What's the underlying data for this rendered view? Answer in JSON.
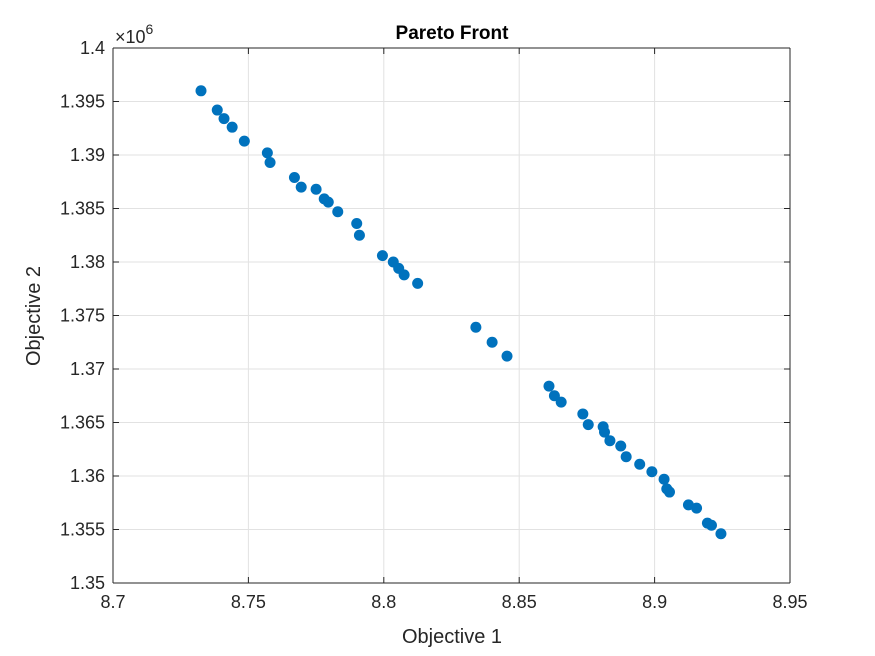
{
  "chart_data": {
    "type": "scatter",
    "title": "Pareto Front",
    "xlabel": "Objective 1",
    "ylabel": "Objective 2",
    "xlim": [
      8.7,
      8.95
    ],
    "ylim": [
      1.35,
      1.4
    ],
    "y_multiplier": "×10",
    "y_exponent": "6",
    "x_ticks": [
      "8.7",
      "8.75",
      "8.8",
      "8.85",
      "8.9",
      "8.95"
    ],
    "y_ticks": [
      "1.35",
      "1.355",
      "1.36",
      "1.365",
      "1.37",
      "1.375",
      "1.38",
      "1.385",
      "1.39",
      "1.395",
      "1.4"
    ],
    "grid": true,
    "marker_color": "#0072BD",
    "series": [
      {
        "x": [
          8.7325,
          8.7385,
          8.741,
          8.744,
          8.7485,
          8.757,
          8.758,
          8.767,
          8.7695,
          8.775,
          8.778,
          8.7795,
          8.783,
          8.79,
          8.791,
          8.7995,
          8.8035,
          8.8055,
          8.8075,
          8.8125,
          8.834,
          8.84,
          8.8455,
          8.861,
          8.863,
          8.8655,
          8.8735,
          8.8755,
          8.881,
          8.8815,
          8.8835,
          8.8875,
          8.8895,
          8.8945,
          8.899,
          8.9035,
          8.9045,
          8.9055,
          8.9125,
          8.9155,
          8.9195,
          8.921,
          8.9245
        ],
        "y": [
          1.396,
          1.3942,
          1.3934,
          1.3926,
          1.3913,
          1.3902,
          1.3893,
          1.3879,
          1.387,
          1.3868,
          1.3859,
          1.3856,
          1.3847,
          1.3836,
          1.3825,
          1.3806,
          1.38,
          1.3794,
          1.3788,
          1.378,
          1.3739,
          1.3725,
          1.3712,
          1.3684,
          1.3675,
          1.3669,
          1.3658,
          1.3648,
          1.3646,
          1.3641,
          1.3633,
          1.3628,
          1.3618,
          1.3611,
          1.3604,
          1.3597,
          1.3588,
          1.3585,
          1.3573,
          1.357,
          1.3556,
          1.3554,
          1.3546
        ]
      }
    ]
  }
}
